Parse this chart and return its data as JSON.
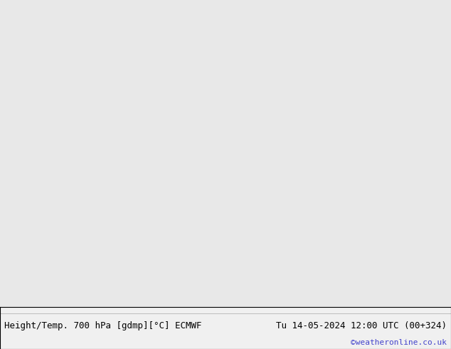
{
  "title_left": "Height/Temp. 700 hPa [gdmp][°C] ECMWF",
  "title_right": "Tu 14-05-2024 12:00 UTC (00+324)",
  "credit": "©weatheronline.co.uk",
  "background_color": "#d0d0d0",
  "land_green_color": "#b8e88a",
  "land_gray_color": "#c8c8c8",
  "sea_color": "#e8e8e8",
  "contour_black_color": "#000000",
  "contour_magenta_color": "#cc00cc",
  "contour_red_color": "#cc0000",
  "footer_bg": "#f0f0f0",
  "extent": [
    80,
    175,
    -20,
    60
  ],
  "figsize": [
    6.34,
    4.9
  ],
  "dpi": 100
}
